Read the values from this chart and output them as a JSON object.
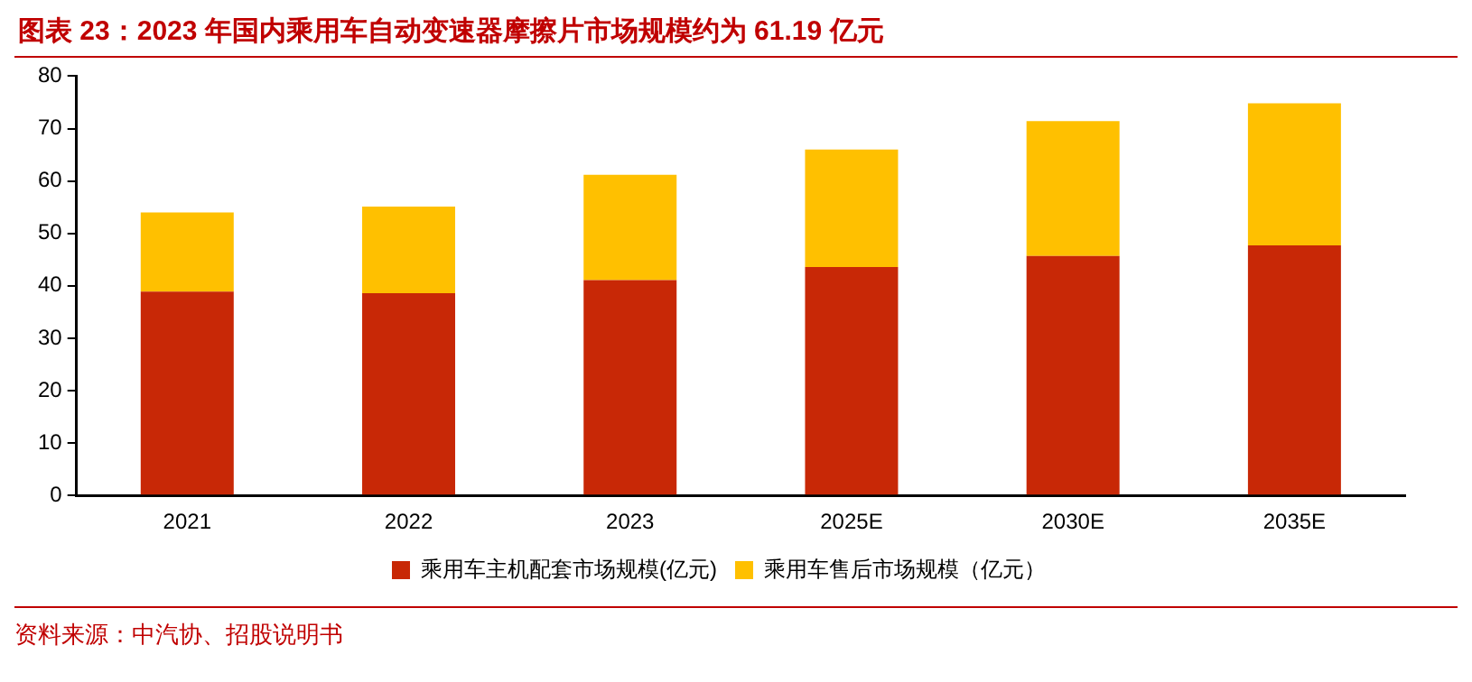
{
  "chart_data": {
    "type": "bar",
    "title": "图表 23：2023 年国内乘用车自动变速器摩擦片市场规模约为 61.19 亿元",
    "categories": [
      "2021",
      "2022",
      "2023",
      "2025E",
      "2030E",
      "2035E"
    ],
    "stacked": true,
    "series": [
      {
        "name": "乘用车主机配套市场规模(亿元)",
        "color": "#c82806",
        "values": [
          38.9,
          38.6,
          41.1,
          43.6,
          45.7,
          47.7
        ]
      },
      {
        "name": "乘用车售后市场规模（亿元）",
        "color": "#ffc000",
        "values": [
          15.1,
          16.5,
          20.1,
          22.4,
          25.7,
          27.1
        ]
      }
    ],
    "ylim": [
      0,
      80
    ],
    "yticks": [
      0,
      10,
      20,
      30,
      40,
      50,
      60,
      70,
      80
    ],
    "grid": false,
    "legend": "bottom",
    "annotations": [
      "资料来源：中汽协、招股说明书"
    ]
  }
}
